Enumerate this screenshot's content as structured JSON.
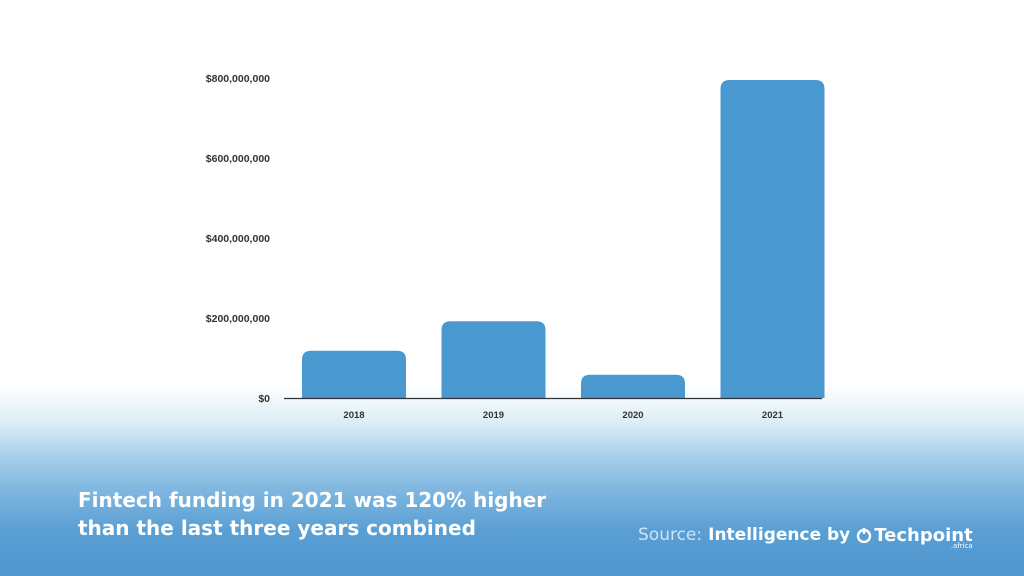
{
  "chart_data": {
    "type": "bar",
    "categories": [
      "2018",
      "2019",
      "2020",
      "2021"
    ],
    "values": [
      118000000,
      192000000,
      58000000,
      795000000
    ],
    "ylim": [
      0,
      800000000
    ],
    "y_ticks": [
      "$0",
      "$200,000,000",
      "$400,000,000",
      "$600,000,000",
      "$800,000,000"
    ],
    "title": "",
    "xlabel": "",
    "ylabel": "",
    "grid": false,
    "legend": "none",
    "bar_color": "#4a98d0"
  },
  "caption": {
    "line1": "Fintech funding in 2021 was 120% higher",
    "line2": "than the last three years combined"
  },
  "source": {
    "prefix": "Source:",
    "text": "Intelligence by",
    "brand": "Techpoint",
    "brand_suffix": ".africa",
    "brand_icon": "techpoint-logo-icon"
  }
}
